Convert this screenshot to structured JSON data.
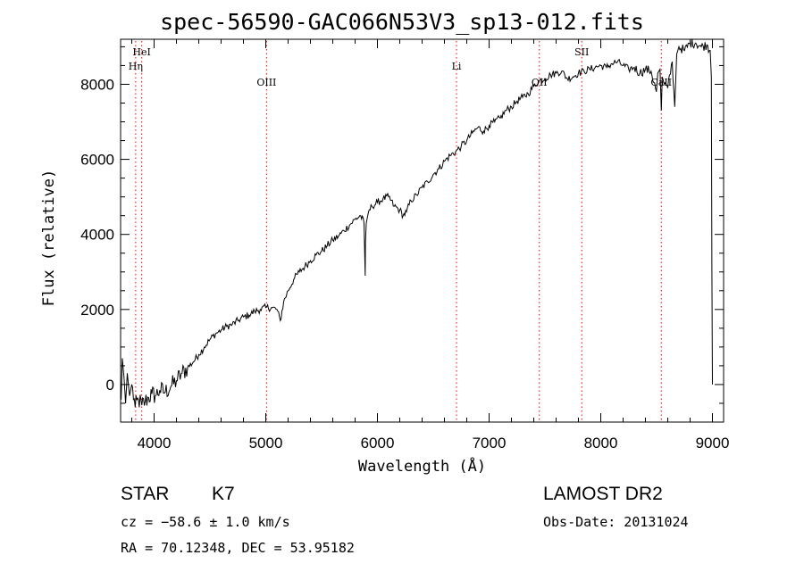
{
  "chart_data": {
    "type": "line",
    "title": "spec-56590-GAC066N53V3_sp13-012.fits",
    "xlabel": "Wavelength (Å)",
    "ylabel": "Flux (relative)",
    "xlim": [
      3700,
      9100
    ],
    "ylim": [
      -1000,
      9200
    ],
    "xticks": [
      4000,
      5000,
      6000,
      7000,
      8000,
      9000
    ],
    "yticks": [
      0,
      2000,
      4000,
      6000,
      8000
    ],
    "grid": false,
    "line_color": "#000000",
    "marker_color": "#ff0000",
    "lines": [
      {
        "label": "HeI",
        "x": 3889,
        "label_row": 0
      },
      {
        "label": "Hη",
        "x": 3835,
        "label_row": 1
      },
      {
        "label": "OIII",
        "x": 5007,
        "label_row": 2
      },
      {
        "label": "Li",
        "x": 6708,
        "label_row": 1
      },
      {
        "label": "OII",
        "x": 7450,
        "label_row": 2
      },
      {
        "label": "SII",
        "x": 7830,
        "label_row": 0
      },
      {
        "label": "CaII",
        "x": 8542,
        "label_row": 2
      }
    ],
    "series": [
      {
        "x": [
          3705,
          3715,
          3730,
          3745,
          3760,
          3780,
          3800,
          3830,
          3860,
          3890,
          3920,
          3950,
          3980,
          4010,
          4050,
          4100,
          4150,
          4200,
          4250,
          4300,
          4350,
          4400,
          4450,
          4500,
          4550,
          4600,
          4650,
          4700,
          4750,
          4800,
          4850,
          4900,
          4950,
          5000,
          5050,
          5100,
          5130,
          5160,
          5200,
          5250,
          5300,
          5350,
          5400,
          5450,
          5500,
          5550,
          5600,
          5650,
          5700,
          5750,
          5800,
          5850,
          5880,
          5890,
          5893,
          5900,
          5920,
          5950,
          6000,
          6050,
          6100,
          6150,
          6200,
          6230,
          6260,
          6300,
          6350,
          6400,
          6450,
          6500,
          6550,
          6600,
          6650,
          6700,
          6750,
          6800,
          6850,
          6900,
          6950,
          7000,
          7050,
          7100,
          7150,
          7200,
          7250,
          7300,
          7350,
          7400,
          7450,
          7500,
          7550,
          7600,
          7650,
          7700,
          7750,
          7800,
          7850,
          7900,
          7950,
          8000,
          8050,
          8100,
          8150,
          8200,
          8250,
          8300,
          8350,
          8400,
          8450,
          8498,
          8510,
          8530,
          8542,
          8550,
          8570,
          8600,
          8640,
          8662,
          8680,
          8700,
          8750,
          8800,
          8850,
          8900,
          8950,
          8980,
          8990,
          8995,
          9000
        ],
        "y": [
          -400,
          700,
          200,
          -500,
          300,
          -300,
          0,
          -600,
          -400,
          -550,
          -450,
          -350,
          -250,
          -300,
          -150,
          -200,
          -50,
          100,
          300,
          450,
          600,
          800,
          1000,
          1200,
          1350,
          1450,
          1550,
          1600,
          1700,
          1800,
          1850,
          1950,
          2000,
          2050,
          2050,
          2000,
          1700,
          2200,
          2500,
          2800,
          3000,
          3150,
          3300,
          3450,
          3550,
          3700,
          3850,
          3950,
          4100,
          4250,
          4400,
          4500,
          4300,
          2900,
          3800,
          4300,
          4600,
          4750,
          4850,
          4950,
          5000,
          4750,
          4650,
          4500,
          4600,
          4900,
          5050,
          5250,
          5400,
          5600,
          5750,
          5950,
          6100,
          6200,
          6350,
          6500,
          6700,
          6850,
          6750,
          6900,
          7000,
          7100,
          7300,
          7400,
          7550,
          7650,
          7750,
          7950,
          8100,
          8150,
          8250,
          8300,
          8350,
          8150,
          8200,
          8300,
          8350,
          8400,
          8450,
          8500,
          8450,
          8550,
          8600,
          8500,
          8400,
          8450,
          8300,
          8400,
          8350,
          7800,
          8300,
          8400,
          7300,
          8200,
          8000,
          7900,
          8600,
          7400,
          8800,
          9000,
          8900,
          9100,
          9100,
          9000,
          9050,
          8900,
          8200,
          3000,
          0
        ]
      }
    ]
  },
  "info": {
    "obj_class": "STAR",
    "subclass": "K7",
    "survey": "LAMOST DR2",
    "cz": "cz = −58.6 ± 1.0 km/s",
    "obs_date": "Obs-Date: 20131024",
    "coords": "RA =  70.12348, DEC =  53.95182"
  }
}
